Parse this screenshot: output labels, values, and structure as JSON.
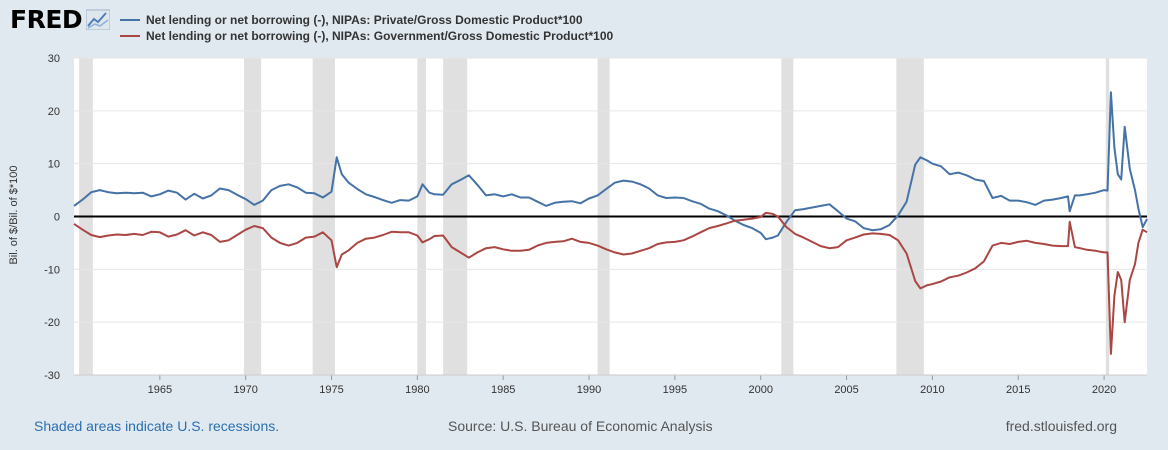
{
  "header": {
    "logo_text": "FRED",
    "logo_icon": "line-graph-icon"
  },
  "footer": {
    "recession_note": "Shaded areas indicate U.S. recessions.",
    "source": "Source: U.S. Bureau of Economic Analysis",
    "site": "fred.stlouisfed.org"
  },
  "colors": {
    "background": "#e1e9f0",
    "plot_background": "#ffffff",
    "private_series": "#4572a7",
    "government_series": "#aa4643",
    "recession_shade": "#e0e0e0",
    "gridline": "#e6e6e6",
    "zero_line": "#000000"
  },
  "chart_data": {
    "type": "line",
    "ylabel": "Bil. of $/Bil. of $*100",
    "xlabel": "",
    "xlim": [
      1960.0,
      2022.5
    ],
    "ylim": [
      -30,
      30
    ],
    "y_ticks": [
      30,
      20,
      10,
      0,
      -10,
      -20,
      -30
    ],
    "x_ticks": [
      1965,
      1970,
      1975,
      1980,
      1985,
      1990,
      1995,
      2000,
      2005,
      2010,
      2015,
      2020
    ],
    "grid": true,
    "legend_position": "top",
    "recessions": [
      [
        1960.3,
        1961.1
      ],
      [
        1969.9,
        1970.9
      ],
      [
        1973.9,
        1975.2
      ],
      [
        1980.0,
        1980.5
      ],
      [
        1981.5,
        1982.9
      ],
      [
        1990.5,
        1991.2
      ],
      [
        2001.2,
        2001.9
      ],
      [
        2007.9,
        2009.5
      ],
      [
        2020.1,
        2020.3
      ]
    ],
    "series": [
      {
        "name": "Net lending or net borrowing (-), NIPAs: Private/Gross Domestic Product*100",
        "color": "#4572a7",
        "points": [
          [
            1960.0,
            2.0
          ],
          [
            1960.5,
            3.2
          ],
          [
            1961.0,
            4.6
          ],
          [
            1961.5,
            5.0
          ],
          [
            1962.0,
            4.6
          ],
          [
            1962.5,
            4.4
          ],
          [
            1963.0,
            4.5
          ],
          [
            1963.5,
            4.4
          ],
          [
            1964.0,
            4.5
          ],
          [
            1964.5,
            3.8
          ],
          [
            1965.0,
            4.2
          ],
          [
            1965.5,
            4.9
          ],
          [
            1966.0,
            4.5
          ],
          [
            1966.5,
            3.2
          ],
          [
            1967.0,
            4.3
          ],
          [
            1967.5,
            3.4
          ],
          [
            1968.0,
            4.0
          ],
          [
            1968.5,
            5.3
          ],
          [
            1969.0,
            5.0
          ],
          [
            1969.5,
            4.1
          ],
          [
            1970.0,
            3.3
          ],
          [
            1970.5,
            2.2
          ],
          [
            1971.0,
            3.0
          ],
          [
            1971.5,
            5.0
          ],
          [
            1972.0,
            5.8
          ],
          [
            1972.5,
            6.1
          ],
          [
            1973.0,
            5.5
          ],
          [
            1973.5,
            4.5
          ],
          [
            1974.0,
            4.4
          ],
          [
            1974.5,
            3.6
          ],
          [
            1975.0,
            4.7
          ],
          [
            1975.3,
            11.2
          ],
          [
            1975.6,
            8.0
          ],
          [
            1976.0,
            6.4
          ],
          [
            1976.5,
            5.2
          ],
          [
            1977.0,
            4.2
          ],
          [
            1977.5,
            3.7
          ],
          [
            1978.0,
            3.1
          ],
          [
            1978.5,
            2.6
          ],
          [
            1979.0,
            3.1
          ],
          [
            1979.5,
            3.0
          ],
          [
            1980.0,
            3.8
          ],
          [
            1980.3,
            6.1
          ],
          [
            1980.7,
            4.5
          ],
          [
            1981.0,
            4.2
          ],
          [
            1981.5,
            4.1
          ],
          [
            1982.0,
            6.1
          ],
          [
            1982.5,
            6.9
          ],
          [
            1983.0,
            7.8
          ],
          [
            1983.5,
            6.0
          ],
          [
            1984.0,
            4.0
          ],
          [
            1984.5,
            4.2
          ],
          [
            1985.0,
            3.8
          ],
          [
            1985.5,
            4.2
          ],
          [
            1986.0,
            3.6
          ],
          [
            1986.5,
            3.6
          ],
          [
            1987.0,
            2.8
          ],
          [
            1987.5,
            2.0
          ],
          [
            1988.0,
            2.6
          ],
          [
            1988.5,
            2.8
          ],
          [
            1989.0,
            2.9
          ],
          [
            1989.5,
            2.5
          ],
          [
            1990.0,
            3.4
          ],
          [
            1990.5,
            4.0
          ],
          [
            1991.0,
            5.2
          ],
          [
            1991.5,
            6.4
          ],
          [
            1992.0,
            6.8
          ],
          [
            1992.5,
            6.6
          ],
          [
            1993.0,
            6.1
          ],
          [
            1993.5,
            5.3
          ],
          [
            1994.0,
            4.0
          ],
          [
            1994.5,
            3.5
          ],
          [
            1995.0,
            3.6
          ],
          [
            1995.5,
            3.5
          ],
          [
            1996.0,
            2.9
          ],
          [
            1996.5,
            2.4
          ],
          [
            1997.0,
            1.5
          ],
          [
            1997.5,
            1.0
          ],
          [
            1998.0,
            0.2
          ],
          [
            1998.5,
            -0.8
          ],
          [
            1999.0,
            -1.6
          ],
          [
            1999.5,
            -2.2
          ],
          [
            2000.0,
            -3.1
          ],
          [
            2000.3,
            -4.3
          ],
          [
            2000.7,
            -4.0
          ],
          [
            2001.0,
            -3.6
          ],
          [
            2001.5,
            -1.0
          ],
          [
            2002.0,
            1.2
          ],
          [
            2002.5,
            1.4
          ],
          [
            2003.0,
            1.7
          ],
          [
            2003.5,
            2.0
          ],
          [
            2004.0,
            2.3
          ],
          [
            2004.5,
            1.0
          ],
          [
            2005.0,
            -0.4
          ],
          [
            2005.5,
            -0.9
          ],
          [
            2006.0,
            -2.2
          ],
          [
            2006.5,
            -2.6
          ],
          [
            2007.0,
            -2.4
          ],
          [
            2007.5,
            -1.6
          ],
          [
            2008.0,
            0.2
          ],
          [
            2008.5,
            2.8
          ],
          [
            2009.0,
            9.8
          ],
          [
            2009.3,
            11.2
          ],
          [
            2009.7,
            10.6
          ],
          [
            2010.0,
            10.0
          ],
          [
            2010.5,
            9.5
          ],
          [
            2011.0,
            8.0
          ],
          [
            2011.5,
            8.3
          ],
          [
            2012.0,
            7.8
          ],
          [
            2012.5,
            7.0
          ],
          [
            2013.0,
            6.7
          ],
          [
            2013.5,
            3.5
          ],
          [
            2014.0,
            3.9
          ],
          [
            2014.5,
            3.0
          ],
          [
            2015.0,
            3.0
          ],
          [
            2015.5,
            2.7
          ],
          [
            2016.0,
            2.2
          ],
          [
            2016.5,
            3.0
          ],
          [
            2017.0,
            3.2
          ],
          [
            2017.5,
            3.5
          ],
          [
            2017.9,
            3.8
          ],
          [
            2018.0,
            1.0
          ],
          [
            2018.3,
            4.0
          ],
          [
            2018.6,
            4.0
          ],
          [
            2019.0,
            4.2
          ],
          [
            2019.5,
            4.5
          ],
          [
            2020.0,
            5.0
          ],
          [
            2020.2,
            4.9
          ],
          [
            2020.4,
            23.5
          ],
          [
            2020.6,
            13.0
          ],
          [
            2020.8,
            8.0
          ],
          [
            2021.0,
            7.0
          ],
          [
            2021.2,
            17.0
          ],
          [
            2021.5,
            9.0
          ],
          [
            2021.8,
            5.0
          ],
          [
            2022.0,
            1.5
          ],
          [
            2022.25,
            -2.0
          ],
          [
            2022.5,
            -0.5
          ]
        ]
      },
      {
        "name": "Net lending or net borrowing (-), NIPAs: Government/Gross Domestic Product*100",
        "color": "#aa4643",
        "points": [
          [
            1960.0,
            -1.4
          ],
          [
            1960.5,
            -2.5
          ],
          [
            1961.0,
            -3.5
          ],
          [
            1961.5,
            -3.9
          ],
          [
            1962.0,
            -3.6
          ],
          [
            1962.5,
            -3.4
          ],
          [
            1963.0,
            -3.5
          ],
          [
            1963.5,
            -3.3
          ],
          [
            1964.0,
            -3.5
          ],
          [
            1964.5,
            -2.9
          ],
          [
            1965.0,
            -3.0
          ],
          [
            1965.5,
            -3.8
          ],
          [
            1966.0,
            -3.4
          ],
          [
            1966.5,
            -2.6
          ],
          [
            1967.0,
            -3.6
          ],
          [
            1967.5,
            -3.0
          ],
          [
            1968.0,
            -3.5
          ],
          [
            1968.5,
            -4.8
          ],
          [
            1969.0,
            -4.5
          ],
          [
            1969.5,
            -3.5
          ],
          [
            1970.0,
            -2.5
          ],
          [
            1970.5,
            -1.8
          ],
          [
            1971.0,
            -2.2
          ],
          [
            1971.5,
            -4.0
          ],
          [
            1972.0,
            -5.0
          ],
          [
            1972.5,
            -5.5
          ],
          [
            1973.0,
            -5.0
          ],
          [
            1973.5,
            -4.0
          ],
          [
            1974.0,
            -3.8
          ],
          [
            1974.5,
            -3.0
          ],
          [
            1975.0,
            -4.5
          ],
          [
            1975.3,
            -9.6
          ],
          [
            1975.6,
            -7.2
          ],
          [
            1976.0,
            -6.4
          ],
          [
            1976.5,
            -5.0
          ],
          [
            1977.0,
            -4.2
          ],
          [
            1977.5,
            -4.0
          ],
          [
            1978.0,
            -3.5
          ],
          [
            1978.5,
            -2.9
          ],
          [
            1979.0,
            -3.0
          ],
          [
            1979.5,
            -3.0
          ],
          [
            1980.0,
            -3.6
          ],
          [
            1980.3,
            -4.9
          ],
          [
            1980.7,
            -4.3
          ],
          [
            1981.0,
            -3.7
          ],
          [
            1981.5,
            -3.6
          ],
          [
            1982.0,
            -5.8
          ],
          [
            1982.5,
            -6.8
          ],
          [
            1983.0,
            -7.8
          ],
          [
            1983.5,
            -6.8
          ],
          [
            1984.0,
            -6.0
          ],
          [
            1984.5,
            -5.8
          ],
          [
            1985.0,
            -6.2
          ],
          [
            1985.5,
            -6.5
          ],
          [
            1986.0,
            -6.5
          ],
          [
            1986.5,
            -6.3
          ],
          [
            1987.0,
            -5.5
          ],
          [
            1987.5,
            -5.0
          ],
          [
            1988.0,
            -4.8
          ],
          [
            1988.5,
            -4.7
          ],
          [
            1989.0,
            -4.2
          ],
          [
            1989.5,
            -4.8
          ],
          [
            1990.0,
            -5.0
          ],
          [
            1990.5,
            -5.5
          ],
          [
            1991.0,
            -6.2
          ],
          [
            1991.5,
            -6.8
          ],
          [
            1992.0,
            -7.2
          ],
          [
            1992.5,
            -7.0
          ],
          [
            1993.0,
            -6.5
          ],
          [
            1993.5,
            -6.0
          ],
          [
            1994.0,
            -5.2
          ],
          [
            1994.5,
            -4.9
          ],
          [
            1995.0,
            -4.8
          ],
          [
            1995.5,
            -4.5
          ],
          [
            1996.0,
            -3.8
          ],
          [
            1996.5,
            -3.0
          ],
          [
            1997.0,
            -2.2
          ],
          [
            1997.5,
            -1.8
          ],
          [
            1998.0,
            -1.3
          ],
          [
            1998.5,
            -0.8
          ],
          [
            1999.0,
            -0.6
          ],
          [
            1999.5,
            -0.4
          ],
          [
            2000.0,
            -0.1
          ],
          [
            2000.3,
            0.7
          ],
          [
            2000.7,
            0.5
          ],
          [
            2001.0,
            0.0
          ],
          [
            2001.5,
            -2.0
          ],
          [
            2002.0,
            -3.3
          ],
          [
            2002.5,
            -4.0
          ],
          [
            2003.0,
            -4.8
          ],
          [
            2003.5,
            -5.6
          ],
          [
            2004.0,
            -6.0
          ],
          [
            2004.5,
            -5.8
          ],
          [
            2005.0,
            -4.5
          ],
          [
            2005.5,
            -4.0
          ],
          [
            2006.0,
            -3.4
          ],
          [
            2006.5,
            -3.2
          ],
          [
            2007.0,
            -3.3
          ],
          [
            2007.5,
            -3.5
          ],
          [
            2008.0,
            -4.5
          ],
          [
            2008.5,
            -7.0
          ],
          [
            2009.0,
            -12.2
          ],
          [
            2009.3,
            -13.6
          ],
          [
            2009.7,
            -13.0
          ],
          [
            2010.0,
            -12.8
          ],
          [
            2010.5,
            -12.3
          ],
          [
            2011.0,
            -11.5
          ],
          [
            2011.5,
            -11.2
          ],
          [
            2012.0,
            -10.6
          ],
          [
            2012.5,
            -9.8
          ],
          [
            2013.0,
            -8.5
          ],
          [
            2013.5,
            -5.5
          ],
          [
            2014.0,
            -5.0
          ],
          [
            2014.5,
            -5.2
          ],
          [
            2015.0,
            -4.8
          ],
          [
            2015.5,
            -4.6
          ],
          [
            2016.0,
            -5.0
          ],
          [
            2016.5,
            -5.2
          ],
          [
            2017.0,
            -5.5
          ],
          [
            2017.5,
            -5.6
          ],
          [
            2017.9,
            -5.6
          ],
          [
            2018.0,
            -1.0
          ],
          [
            2018.3,
            -5.8
          ],
          [
            2018.6,
            -6.0
          ],
          [
            2019.0,
            -6.3
          ],
          [
            2019.5,
            -6.5
          ],
          [
            2020.0,
            -6.8
          ],
          [
            2020.2,
            -6.8
          ],
          [
            2020.4,
            -26.0
          ],
          [
            2020.6,
            -15.0
          ],
          [
            2020.8,
            -10.5
          ],
          [
            2021.0,
            -12.0
          ],
          [
            2021.2,
            -20.0
          ],
          [
            2021.5,
            -12.0
          ],
          [
            2021.8,
            -9.0
          ],
          [
            2022.0,
            -5.0
          ],
          [
            2022.25,
            -2.5
          ],
          [
            2022.5,
            -3.0
          ]
        ]
      }
    ]
  }
}
